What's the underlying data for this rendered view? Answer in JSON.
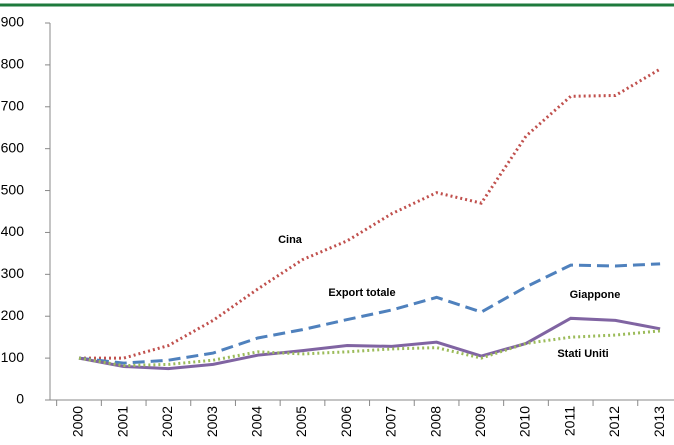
{
  "chart_data": {
    "type": "line",
    "categories": [
      "2000",
      "2001",
      "2002",
      "2003",
      "2004",
      "2005",
      "2006",
      "2007",
      "2008",
      "2009",
      "2010",
      "2011",
      "2012",
      "2013"
    ],
    "series": [
      {
        "name": "Cina",
        "color": "#c0504d",
        "style": "dotted",
        "values": [
          100,
          100,
          130,
          190,
          265,
          335,
          380,
          445,
          495,
          470,
          630,
          725,
          727,
          790
        ]
      },
      {
        "name": "Export totale",
        "color": "#4f81bd",
        "style": "dashed",
        "values": [
          100,
          88,
          95,
          112,
          148,
          168,
          192,
          215,
          245,
          210,
          270,
          322,
          320,
          325
        ]
      },
      {
        "name": "Giappone",
        "color": "#8064a2",
        "style": "solid",
        "values": [
          100,
          80,
          75,
          85,
          107,
          118,
          130,
          128,
          138,
          105,
          135,
          195,
          190,
          170
        ]
      },
      {
        "name": "Stati Uniti",
        "color": "#9bbb59",
        "style": "dotted",
        "values": [
          100,
          82,
          85,
          95,
          115,
          110,
          115,
          122,
          125,
          100,
          135,
          150,
          155,
          165
        ]
      }
    ],
    "ylim": [
      0,
      900
    ],
    "yticks": [
      0,
      100,
      200,
      300,
      400,
      500,
      600,
      700,
      800,
      900
    ],
    "grid": false
  }
}
